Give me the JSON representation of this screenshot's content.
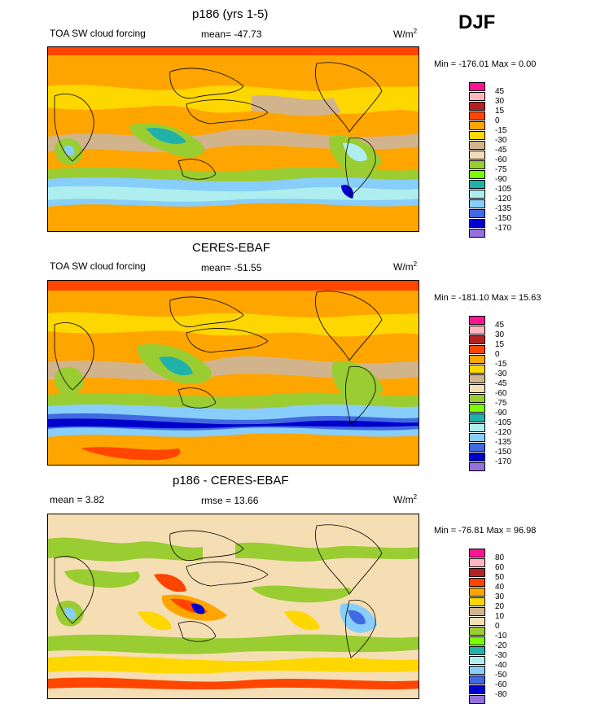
{
  "season": "DJF",
  "panels": [
    {
      "id": "model",
      "title": "p186 (yrs 1-5)",
      "left_label": "TOA SW cloud forcing",
      "center_label": "mean= -47.73",
      "units_base": "W/m",
      "units_sup": "2",
      "minmax": "Min = -176.01 Max =   0.00",
      "colorbar_labels": [
        "45",
        "30",
        "15",
        "0",
        "-15",
        "-30",
        "-45",
        "-60",
        "-75",
        "-90",
        "-105",
        "-120",
        "-135",
        "-150",
        "-170"
      ]
    },
    {
      "id": "obs",
      "title": "CERES-EBAF",
      "left_label": "TOA SW cloud forcing",
      "center_label": "mean= -51.55",
      "units_base": "W/m",
      "units_sup": "2",
      "minmax": "Min = -181.10 Max =  15.63",
      "colorbar_labels": [
        "45",
        "30",
        "15",
        "0",
        "-15",
        "-30",
        "-45",
        "-60",
        "-75",
        "-90",
        "-105",
        "-120",
        "-135",
        "-150",
        "-170"
      ]
    },
    {
      "id": "diff",
      "title": "p186 - CERES-EBAF",
      "left_label": "mean =   3.82",
      "center_label": "rmse =  13.66",
      "units_base": "W/m",
      "units_sup": "2",
      "minmax": "Min = -76.81 Max =  96.98",
      "colorbar_labels": [
        "80",
        "60",
        "50",
        "40",
        "30",
        "20",
        "10",
        "0",
        "-10",
        "-20",
        "-30",
        "-40",
        "-50",
        "-60",
        "-80"
      ]
    }
  ],
  "colorbar_colors": [
    "#ff1493",
    "#ffb6c1",
    "#b22222",
    "#ff4500",
    "#ffa500",
    "#ffd700",
    "#d2b48c",
    "#f5deb3",
    "#9acd32",
    "#7cfc00",
    "#20b2aa",
    "#afeeee",
    "#87cefa",
    "#4169e1",
    "#0000cd",
    "#9370db"
  ]
}
